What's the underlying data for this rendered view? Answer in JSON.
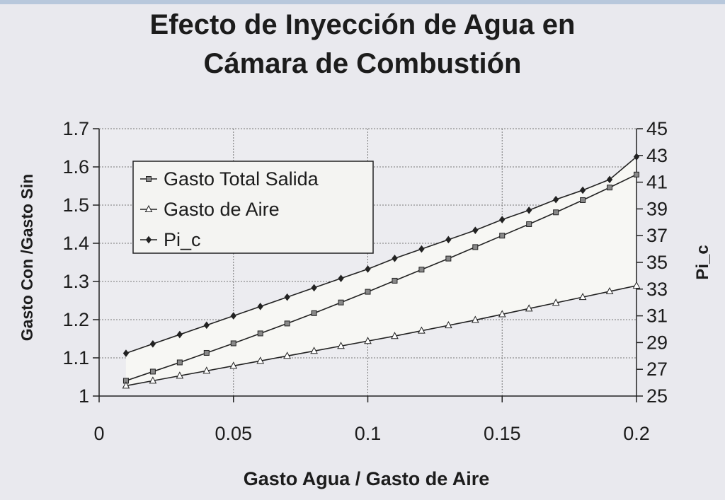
{
  "chart_data": {
    "type": "line",
    "title_lines": [
      "Efecto de Inyección de Agua en",
      "Cámara de Combustión"
    ],
    "xlabel": "Gasto Agua / Gasto de Aire",
    "ylabel": "Gasto Con /Gasto Sin",
    "y2label": "Pi_c",
    "xlim": [
      0,
      0.2
    ],
    "ylim": [
      1,
      1.7
    ],
    "y2lim": [
      25,
      45
    ],
    "x_ticks": [
      "0",
      "0.05",
      "0.1",
      "0.15",
      "0.2"
    ],
    "y_ticks": [
      "1",
      "1.1",
      "1.2",
      "1.3",
      "1.4",
      "1.5",
      "1.6",
      "1.7"
    ],
    "y2_ticks": [
      "25",
      "27",
      "29",
      "31",
      "33",
      "35",
      "37",
      "39",
      "41",
      "43",
      "45"
    ],
    "grid": true,
    "legend_position": "top-left",
    "x": [
      0.01,
      0.02,
      0.03,
      0.04,
      0.05,
      0.06,
      0.07,
      0.08,
      0.09,
      0.1,
      0.11,
      0.12,
      0.13,
      0.14,
      0.15,
      0.16,
      0.17,
      0.18,
      0.19,
      0.2
    ],
    "series": [
      {
        "name": "Gasto Total Salida",
        "axis": "left",
        "marker": "square",
        "values": [
          1.04,
          1.064,
          1.088,
          1.113,
          1.138,
          1.164,
          1.19,
          1.217,
          1.245,
          1.273,
          1.302,
          1.331,
          1.36,
          1.39,
          1.42,
          1.45,
          1.481,
          1.513,
          1.546,
          1.58
        ]
      },
      {
        "name": "Gasto de Aire",
        "axis": "left",
        "marker": "triangle",
        "values": [
          1.027,
          1.04,
          1.053,
          1.066,
          1.079,
          1.092,
          1.105,
          1.118,
          1.131,
          1.144,
          1.157,
          1.171,
          1.185,
          1.199,
          1.214,
          1.229,
          1.244,
          1.259,
          1.274,
          1.289
        ]
      },
      {
        "name": "Pi_c",
        "axis": "right",
        "marker": "diamond",
        "values": [
          28.2,
          28.9,
          29.6,
          30.3,
          31.0,
          31.7,
          32.4,
          33.1,
          33.8,
          34.5,
          35.3,
          36.0,
          36.7,
          37.4,
          38.2,
          38.9,
          39.7,
          40.4,
          41.2,
          42.9
        ]
      }
    ]
  }
}
